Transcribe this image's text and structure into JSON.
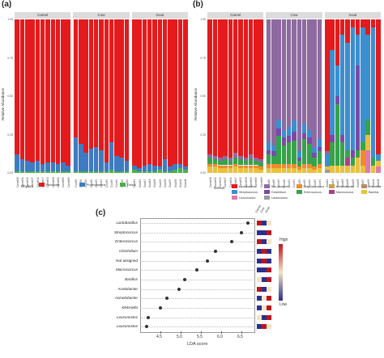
{
  "panel_labels": {
    "a": "(a)",
    "b": "(b)",
    "c": "(c)"
  },
  "colors": {
    "Firmicutes": "#e41a1c",
    "Proteobacteria": "#3d7cc4",
    "Others": "#4daf4a",
    "Lactobacillus": "#e41a1c",
    "Not_Assigned": "#8e6aa0",
    "Staphylococcus": "#f08b2c",
    "Acinetobacter": "#c9a24b",
    "Klebsiella": "#b58b70",
    "Streptococcus": "#3a8fd0",
    "Clostridium": "#7a4aa8",
    "Enterococcus": "#36a34a",
    "Macrococcus": "#b13d8a",
    "Bacillus": "#e8c23a",
    "Leuconostoc": "#e07aa8",
    "Lactococcus": "#9a9a9a"
  },
  "panel_a": {
    "ylabel": "Relative Abundance",
    "yticks": [
      "1.00",
      "0.75",
      "0.50",
      "0.25",
      "0.00"
    ],
    "groups": [
      {
        "name": "Camel",
        "samples": [
          "Camel26",
          "Camel31",
          "Camel32",
          "Camel37",
          "Camel41",
          "Camel47",
          "Camel52",
          "Camel56",
          "Camel62",
          "Camel65",
          "Camel69"
        ]
      },
      {
        "name": "Cow",
        "samples": [
          "Cow06",
          "Cow08",
          "Cow13",
          "Cow16",
          "Cow23",
          "Cow24",
          "Cow33",
          "Cow39",
          "Cow41",
          "Cow43",
          "Cow44"
        ]
      },
      {
        "name": "Goat",
        "samples": [
          "Goat11",
          "Goat13",
          "Goat17",
          "Goat18",
          "Goat26",
          "Goat29",
          "Goat33",
          "Goat37",
          "Goat39",
          "Goat44",
          "Goat48"
        ]
      }
    ],
    "legend_title": "Phylum",
    "legend": [
      "Firmicutes",
      "Proteobacteria",
      "Others"
    ],
    "chart_data": {
      "type": "bar",
      "stacked": true,
      "ylim": [
        0,
        1
      ],
      "series": [
        {
          "name": "Proteobacteria",
          "values": [
            0.11,
            0.08,
            0.07,
            0.06,
            0.07,
            0.05,
            0.06,
            0.06,
            0.05,
            0.06,
            0.04,
            0.22,
            0.18,
            0.12,
            0.15,
            0.16,
            0.14,
            0.06,
            0.18,
            0.1,
            0.09,
            0.07,
            0.03,
            0.02,
            0.04,
            0.05,
            0.04,
            0.02,
            0.08,
            0.03,
            0.04,
            0.03,
            0.02
          ]
        },
        {
          "name": "Others",
          "values": [
            0.01,
            0.01,
            0.01,
            0.01,
            0.01,
            0.01,
            0.01,
            0.01,
            0.01,
            0.01,
            0.01,
            0.01,
            0.01,
            0.01,
            0.01,
            0.01,
            0.01,
            0.01,
            0.02,
            0.01,
            0.01,
            0.01,
            0.02,
            0.01,
            0.01,
            0.01,
            0.01,
            0.02,
            0.01,
            0.01,
            0.02,
            0.03,
            0.02
          ]
        }
      ],
      "remainder": "Firmicutes"
    }
  },
  "panel_b": {
    "ylabel": "Relative Abundance",
    "yticks": [
      "1.00",
      "0.75",
      "0.50",
      "0.25",
      "0.00"
    ],
    "groups": [
      {
        "name": "Camel",
        "samples": [
          "Camel26",
          "Camel31",
          "Camel32",
          "Camel37",
          "Camel41",
          "Camel47",
          "Camel52",
          "Camel56",
          "Camel62",
          "Camel65",
          "Camel69"
        ]
      },
      {
        "name": "Cow",
        "samples": [
          "Cow06",
          "Cow08",
          "Cow13",
          "Cow16",
          "Cow23",
          "Cow24",
          "Cow33",
          "Cow39",
          "Cow41",
          "Cow43",
          "Cow44"
        ]
      },
      {
        "name": "Goat",
        "samples": [
          "Goat11",
          "Goat13",
          "Goat17",
          "Goat18",
          "Goat26",
          "Goat29",
          "Goat33",
          "Goat37",
          "Goat39",
          "Goat44",
          "Goat48"
        ]
      }
    ],
    "legend_title": "Genus",
    "legend": [
      "Lactobacillus",
      "Not_Assigned",
      "Staphylococcus",
      "Acinetobacter",
      "Klebsiella",
      "Streptococcus",
      "Clostridium",
      "Enterococcus",
      "Macrococcus",
      "Bacillus",
      "Leuconostoc",
      "Lactococcus"
    ],
    "chart_data": {
      "type": "bar",
      "stacked": true,
      "ylim": [
        0,
        1
      ],
      "stack_order": [
        "Lactobacillus",
        "Not_Assigned",
        "Streptococcus",
        "Clostridium",
        "Enterococcus",
        "Macrococcus",
        "Staphylococcus",
        "Acinetobacter",
        "Klebsiella",
        "Bacillus",
        "Leuconostoc",
        "Lactococcus"
      ],
      "samples": [
        {
          "Lactobacillus": 0.88,
          "Not_Assigned": 0.02,
          "Enterococcus": 0.04,
          "Bacillus": 0.04,
          "Staphylococcus": 0.02
        },
        {
          "Lactobacillus": 0.89,
          "Not_Assigned": 0.02,
          "Enterococcus": 0.03,
          "Bacillus": 0.04,
          "Staphylococcus": 0.02
        },
        {
          "Lactobacillus": 0.9,
          "Not_Assigned": 0.02,
          "Enterococcus": 0.03,
          "Bacillus": 0.03,
          "Staphylococcus": 0.02
        },
        {
          "Lactobacillus": 0.89,
          "Not_Assigned": 0.02,
          "Enterococcus": 0.04,
          "Bacillus": 0.03,
          "Staphylococcus": 0.02
        },
        {
          "Lactobacillus": 0.9,
          "Not_Assigned": 0.02,
          "Enterococcus": 0.03,
          "Bacillus": 0.03,
          "Staphylococcus": 0.02
        },
        {
          "Lactobacillus": 0.87,
          "Not_Assigned": 0.03,
          "Enterococcus": 0.04,
          "Bacillus": 0.04,
          "Staphylococcus": 0.02
        },
        {
          "Lactobacillus": 0.89,
          "Not_Assigned": 0.02,
          "Enterococcus": 0.04,
          "Bacillus": 0.03,
          "Staphylococcus": 0.02
        },
        {
          "Lactobacillus": 0.9,
          "Not_Assigned": 0.02,
          "Enterococcus": 0.03,
          "Bacillus": 0.03,
          "Staphylococcus": 0.02
        },
        {
          "Lactobacillus": 0.88,
          "Not_Assigned": 0.03,
          "Enterococcus": 0.04,
          "Bacillus": 0.03,
          "Staphylococcus": 0.02
        },
        {
          "Lactobacillus": 0.9,
          "Not_Assigned": 0.02,
          "Enterococcus": 0.03,
          "Bacillus": 0.03,
          "Staphylococcus": 0.02
        },
        {
          "Lactobacillus": 0.91,
          "Not_Assigned": 0.02,
          "Enterococcus": 0.03,
          "Bacillus": 0.02,
          "Staphylococcus": 0.02
        },
        {
          "Not_Assigned": 0.8,
          "Streptococcus": 0.05,
          "Enterococcus": 0.06,
          "Clostridium": 0.03,
          "Staphylococcus": 0.03,
          "Bacillus": 0.03
        },
        {
          "Not_Assigned": 0.82,
          "Streptococcus": 0.04,
          "Enterococcus": 0.05,
          "Clostridium": 0.03,
          "Staphylococcus": 0.03,
          "Bacillus": 0.03
        },
        {
          "Not_Assigned": 0.65,
          "Streptococcus": 0.06,
          "Enterococcus": 0.18,
          "Clostridium": 0.05,
          "Staphylococcus": 0.03,
          "Bacillus": 0.03
        },
        {
          "Not_Assigned": 0.72,
          "Streptococcus": 0.05,
          "Enterococcus": 0.12,
          "Clostridium": 0.05,
          "Staphylococcus": 0.03,
          "Bacillus": 0.03
        },
        {
          "Not_Assigned": 0.7,
          "Streptococcus": 0.06,
          "Enterococcus": 0.14,
          "Clostridium": 0.04,
          "Staphylococcus": 0.03,
          "Bacillus": 0.03
        },
        {
          "Not_Assigned": 0.66,
          "Streptococcus": 0.07,
          "Enterococcus": 0.15,
          "Clostridium": 0.06,
          "Staphylococcus": 0.03,
          "Bacillus": 0.03
        },
        {
          "Not_Assigned": 0.86,
          "Streptococcus": 0.04,
          "Enterococcus": 0.04,
          "Clostridium": 0.02,
          "Staphylococcus": 0.02,
          "Bacillus": 0.02
        },
        {
          "Not_Assigned": 0.68,
          "Streptococcus": 0.06,
          "Enterococcus": 0.16,
          "Clostridium": 0.04,
          "Staphylococcus": 0.03,
          "Bacillus": 0.03
        },
        {
          "Not_Assigned": 0.72,
          "Streptococcus": 0.05,
          "Enterococcus": 0.13,
          "Clostridium": 0.04,
          "Staphylococcus": 0.03,
          "Bacillus": 0.03
        },
        {
          "Not_Assigned": 0.83,
          "Streptococcus": 0.04,
          "Enterococcus": 0.06,
          "Clostridium": 0.03,
          "Staphylococcus": 0.02,
          "Bacillus": 0.02
        },
        {
          "Not_Assigned": 0.78,
          "Streptococcus": 0.05,
          "Enterococcus": 0.08,
          "Clostridium": 0.03,
          "Staphylococcus": 0.03,
          "Bacillus": 0.03
        },
        {
          "Lactobacillus": 0.86,
          "Streptococcus": 0.08,
          "Not_Assigned": 0.02,
          "Lactococcus": 0.02,
          "Bacillus": 0.02
        },
        {
          "Lactobacillus": 0.2,
          "Streptococcus": 0.55,
          "Enterococcus": 0.15,
          "Clostridium": 0.05,
          "Bacillus": 0.05
        },
        {
          "Lactobacillus": 0.3,
          "Streptococcus": 0.2,
          "Enterococcus": 0.4,
          "Clostridium": 0.05,
          "Bacillus": 0.05
        },
        {
          "Lactobacillus": 0.1,
          "Streptococcus": 0.65,
          "Enterococcus": 0.15,
          "Clostridium": 0.05,
          "Bacillus": 0.05
        },
        {
          "Lactobacillus": 0.15,
          "Streptococcus": 0.7,
          "Enterococcus": 0.05,
          "Macrococcus": 0.05,
          "Bacillus": 0.05
        },
        {
          "Lactobacillus": 0.05,
          "Streptococcus": 0.8,
          "Enterococcus": 0.05,
          "Clostridium": 0.05,
          "Bacillus": 0.05
        },
        {
          "Lactobacillus": 0.1,
          "Streptococcus": 0.2,
          "Enterococcus": 0.05,
          "Clostridium": 0.55,
          "Bacillus": 0.1
        },
        {
          "Lactobacillus": 0.05,
          "Streptococcus": 0.75,
          "Enterococcus": 0.05,
          "Staphylococcus": 0.1,
          "Bacillus": 0.05
        },
        {
          "Lactobacillus": 0.1,
          "Streptococcus": 0.55,
          "Enterococcus": 0.1,
          "Leuconostoc": 0.15,
          "Bacillus": 0.1
        },
        {
          "Lactobacillus": 0.05,
          "Streptococcus": 0.85,
          "Enterococcus": 0.05,
          "Bacillus": 0.05
        },
        {
          "Lactobacillus": 0.88,
          "Streptococcus": 0.04,
          "Leuconostoc": 0.04,
          "Bacillus": 0.04
        }
      ]
    }
  },
  "panel_c": {
    "xlabel": "LDA score",
    "xticks": [
      "4.5",
      "5.0",
      "5.5",
      "6.0",
      "6.5"
    ],
    "heatmap_header": [
      "Camel",
      "Cow",
      "Goat"
    ],
    "colorbar": {
      "high": "High",
      "low": "Low"
    },
    "chart_data": {
      "type": "scatter",
      "xlim": [
        4.0,
        6.8
      ],
      "points": [
        {
          "label": "Lactobacillus",
          "x": 6.65,
          "italic": true
        },
        {
          "label": "Streptococcus",
          "x": 6.5,
          "italic": true
        },
        {
          "label": "Enterococcus",
          "x": 6.25,
          "italic": true
        },
        {
          "label": "Clostridium",
          "x": 5.85,
          "italic": true
        },
        {
          "label": "Not assigned",
          "x": 5.65,
          "italic": false
        },
        {
          "label": "Macrococcus",
          "x": 5.4,
          "italic": true
        },
        {
          "label": "Bacillus",
          "x": 5.1,
          "italic": true
        },
        {
          "label": "Acetobacter",
          "x": 4.95,
          "italic": true
        },
        {
          "label": "Acinetobacter",
          "x": 4.65,
          "italic": true
        },
        {
          "label": "Klebsiella",
          "x": 4.5,
          "italic": true
        },
        {
          "label": "Leuconostoc",
          "x": 4.2,
          "italic": true
        },
        {
          "label": "Leuconostoc",
          "x": 4.15,
          "italic": true
        }
      ],
      "heatmap": [
        [
          "high",
          "low",
          "mid"
        ],
        [
          "low",
          "low",
          "high"
        ],
        [
          "high",
          "low",
          "mid"
        ],
        [
          "low",
          "high",
          "low"
        ],
        [
          "low",
          "high",
          "low"
        ],
        [
          "low",
          "low",
          "high"
        ],
        [
          "mid",
          "low",
          "high"
        ],
        [
          "high",
          "low",
          "mid"
        ],
        [
          "low",
          "mid",
          "high"
        ],
        [
          "low",
          "mid",
          "high"
        ],
        [
          "mid",
          "low",
          "high"
        ],
        [
          "low",
          "high",
          "mid"
        ]
      ]
    }
  }
}
